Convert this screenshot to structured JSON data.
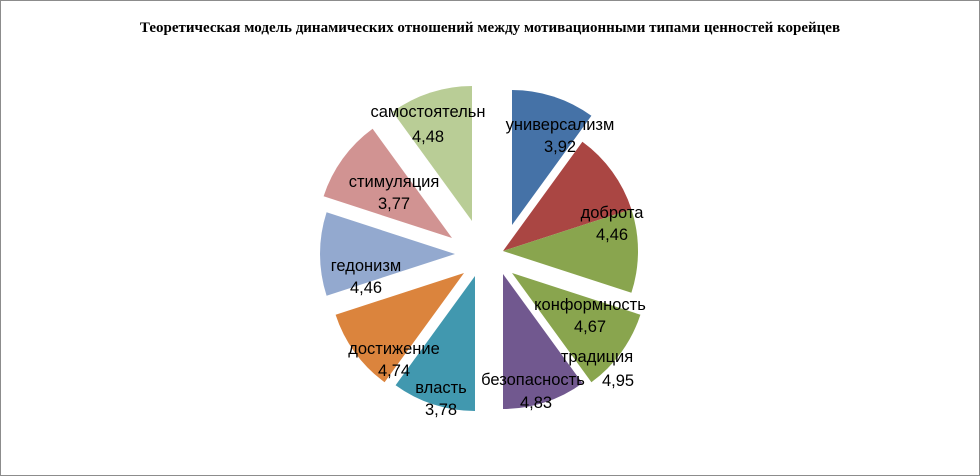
{
  "chart_data": {
    "type": "pie",
    "title": "Теоретическая модель динамических отношений между мотивационными типами ценностей корейцев",
    "slices": [
      {
        "label": "универсализм",
        "value": "3,92",
        "color": "#4572a7"
      },
      {
        "label": "доброта",
        "value": "4,46",
        "color": "#aa4643"
      },
      {
        "label": "конформность",
        "value": "4,67",
        "color": "#89a54e"
      },
      {
        "label": "традиция",
        "value": "4,95",
        "color": "#89a54e"
      },
      {
        "label": "безопасность",
        "value": "4,83",
        "color": "#71588f"
      },
      {
        "label": "власть",
        "value": "3,78",
        "color": "#4198af"
      },
      {
        "label": "достижение",
        "value": "4,74",
        "color": "#db843d"
      },
      {
        "label": "гедонизм",
        "value": "4,46",
        "color": "#93a9cf"
      },
      {
        "label": "стимуляция",
        "value": "3,77",
        "color": "#d19392"
      },
      {
        "label": "самостоятельн",
        "value": "4,48",
        "color": "#b9cd96"
      }
    ],
    "legend": "none"
  }
}
